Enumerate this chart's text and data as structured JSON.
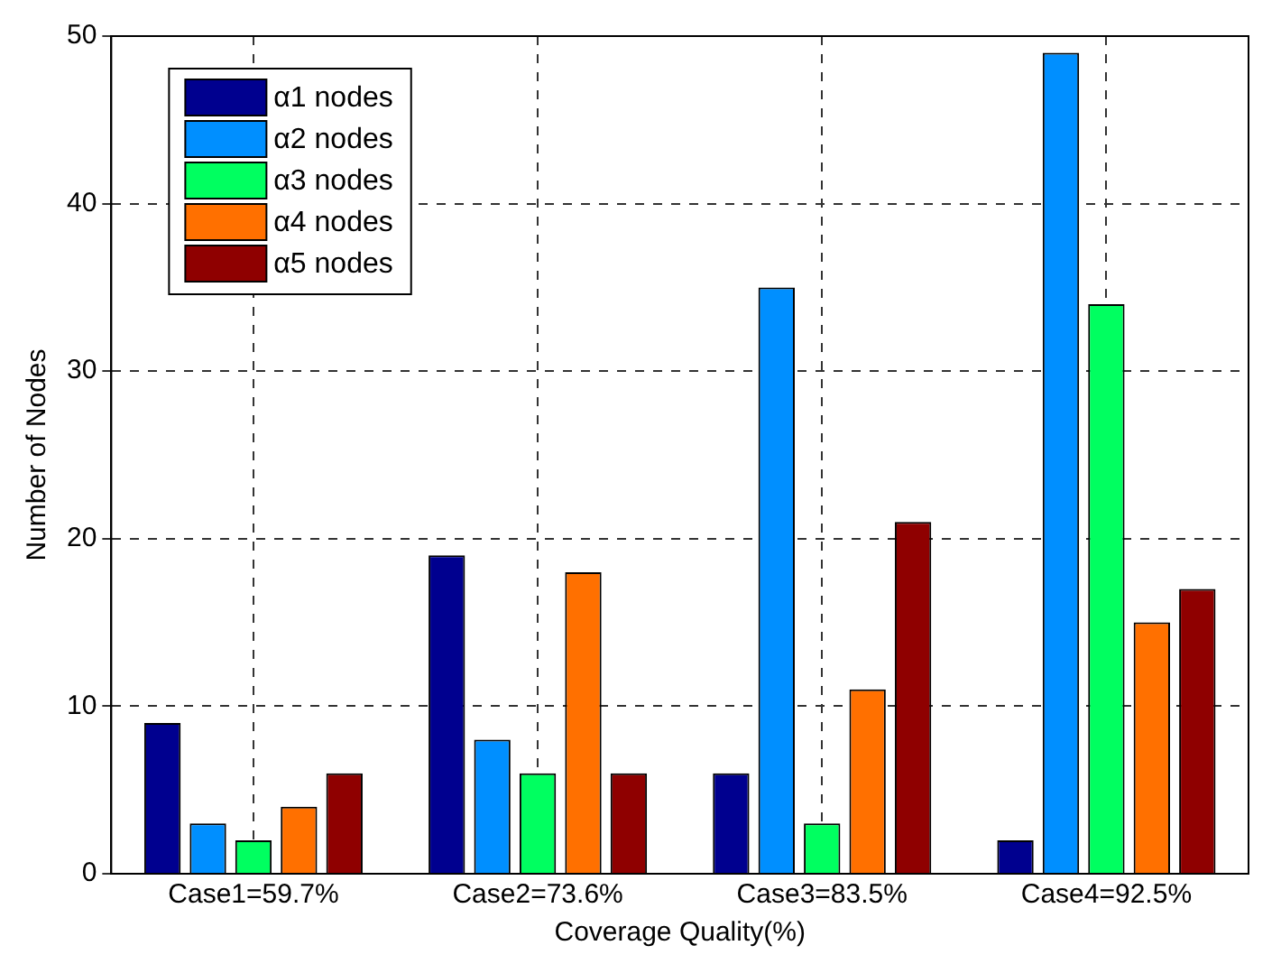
{
  "chart_data": {
    "type": "bar",
    "xlabel": "Coverage Quality(%)",
    "ylabel": "Number of Nodes",
    "categories": [
      "Case1=59.7%",
      "Case2=73.6%",
      "Case3=83.5%",
      "Case4=92.5%"
    ],
    "series": [
      {
        "name": "α1 nodes",
        "color": "#00008f",
        "values": [
          9,
          19,
          6,
          2
        ]
      },
      {
        "name": "α2 nodes",
        "color": "#008fff",
        "values": [
          3,
          8,
          35,
          49
        ]
      },
      {
        "name": "α3 nodes",
        "color": "#00ff60",
        "values": [
          2,
          6,
          3,
          34
        ]
      },
      {
        "name": "α4 nodes",
        "color": "#ff7000",
        "values": [
          4,
          18,
          11,
          15
        ]
      },
      {
        "name": "α5 nodes",
        "color": "#8f0000",
        "values": [
          6,
          6,
          21,
          17
        ]
      }
    ],
    "ylim": [
      0,
      50
    ],
    "yticks": [
      0,
      10,
      20,
      30,
      40,
      50
    ],
    "grid": true,
    "legend": "top left"
  }
}
